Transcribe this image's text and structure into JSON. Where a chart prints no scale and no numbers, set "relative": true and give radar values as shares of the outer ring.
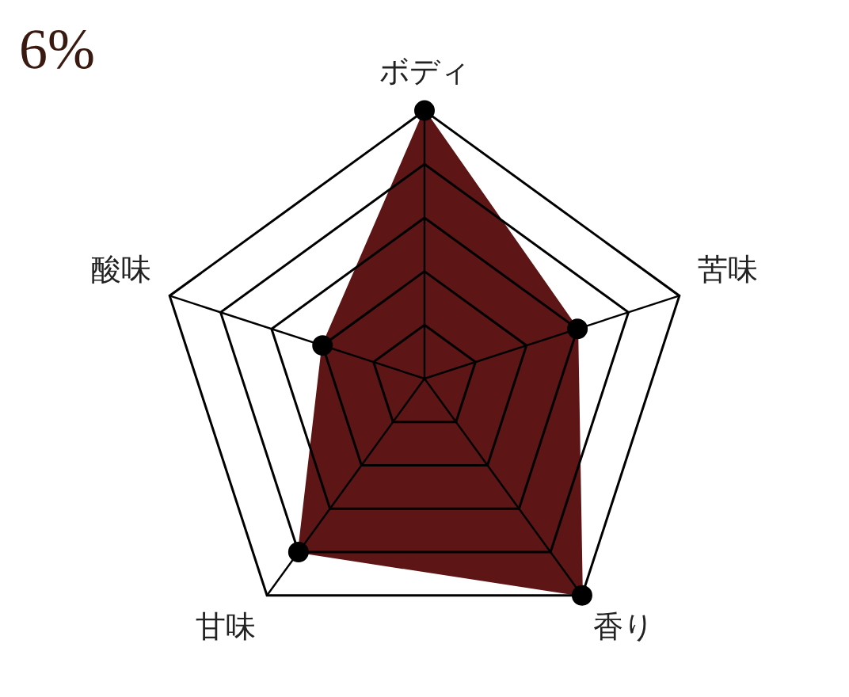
{
  "chart_data": {
    "type": "radar",
    "relative": true,
    "categories": [
      "ボディ",
      "苦味",
      "香り",
      "甘味",
      "酸味"
    ],
    "series": [
      {
        "color": "#5e1515",
        "values": [
          1,
          0.6,
          1,
          0.8,
          0.4
        ]
      }
    ],
    "marker": "circle",
    "grid": true,
    "legend": false,
    "annotations": [
      "6%"
    ]
  }
}
